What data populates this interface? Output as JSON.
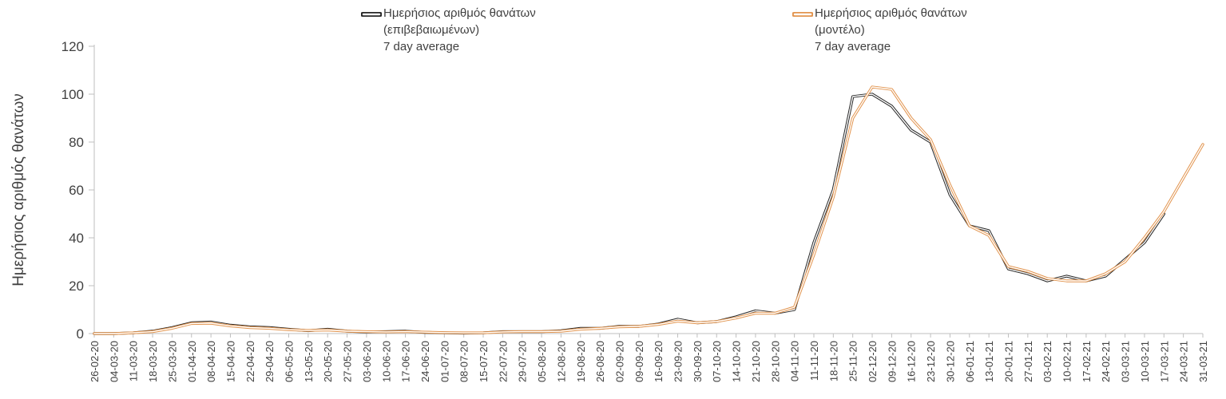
{
  "chart_data": {
    "type": "line",
    "title": "",
    "ylabel": "Ημερήσιος αριθμός θανάτων",
    "xlabel": "",
    "ylim": [
      0,
      120
    ],
    "yticks": [
      0,
      20,
      40,
      60,
      80,
      100,
      120
    ],
    "grid": false,
    "legend_position": "top",
    "axis_color": "#bfbfbf",
    "text_color": "#404040",
    "categories": [
      "26-02-20",
      "04-03-20",
      "11-03-20",
      "18-03-20",
      "25-03-20",
      "01-04-20",
      "08-04-20",
      "15-04-20",
      "22-04-20",
      "29-04-20",
      "06-05-20",
      "13-05-20",
      "20-05-20",
      "27-05-20",
      "03-06-20",
      "10-06-20",
      "17-06-20",
      "24-06-20",
      "01-07-20",
      "08-07-20",
      "15-07-20",
      "22-07-20",
      "29-07-20",
      "05-08-20",
      "12-08-20",
      "19-08-20",
      "26-08-20",
      "02-09-20",
      "09-09-20",
      "16-09-20",
      "23-09-20",
      "30-09-20",
      "07-10-20",
      "14-10-20",
      "21-10-20",
      "28-10-20",
      "04-11-20",
      "11-11-20",
      "18-11-20",
      "25-11-20",
      "02-12-20",
      "09-12-20",
      "16-12-20",
      "23-12-20",
      "30-12-20",
      "06-01-21",
      "13-01-21",
      "20-01-21",
      "27-01-21",
      "03-02-21",
      "10-02-21",
      "17-02-21",
      "24-02-21",
      "03-03-21",
      "10-03-21",
      "17-03-21",
      "24-03-21",
      "31-03-21"
    ],
    "series": [
      {
        "name": "Ημερήσιος αριθμός θανάτων (επιβεβαιωμένων) 7 day average",
        "legend_lines": [
          "Ημερήσιος αριθμός θανάτων",
          "(επιβεβαιωμένων)",
          "7 day average"
        ],
        "color": "#262626",
        "values": [
          0,
          0,
          0.3,
          1,
          2.5,
          4.5,
          4.8,
          3.5,
          2.8,
          2.5,
          1.8,
          1.2,
          1.8,
          1,
          0.7,
          0.8,
          1,
          0.5,
          0.3,
          0.2,
          0.3,
          0.8,
          0.8,
          0.8,
          1.2,
          2.2,
          2.2,
          3,
          3,
          4,
          6,
          4.5,
          5,
          7,
          9.5,
          8.5,
          10,
          38,
          60,
          99,
          100,
          95,
          85,
          80,
          58,
          45,
          43,
          27,
          25,
          22,
          24,
          22,
          24,
          31,
          38,
          50,
          null,
          null
        ]
      },
      {
        "name": "Ημερήσιος αριθμός θανάτων (μοντέλο) 7 day average",
        "legend_lines": [
          "Ημερήσιος αριθμός θανάτων",
          "(μοντέλο)",
          "7 day average"
        ],
        "color": "#e2944e",
        "values": [
          0,
          0,
          0.3,
          0.8,
          2.2,
          4.2,
          4.3,
          3.2,
          2.5,
          2.2,
          1.6,
          1.3,
          1.5,
          1,
          0.8,
          0.7,
          0.8,
          0.6,
          0.4,
          0.3,
          0.3,
          0.7,
          0.8,
          0.8,
          1,
          1.8,
          2.2,
          2.8,
          3,
          3.8,
          5.2,
          4.5,
          5,
          6.5,
          8.5,
          8.5,
          11,
          33,
          57,
          90,
          103,
          102,
          90,
          81,
          62,
          45,
          41,
          28,
          26,
          23,
          22,
          22,
          25,
          30,
          40,
          51,
          65,
          79
        ]
      }
    ]
  }
}
